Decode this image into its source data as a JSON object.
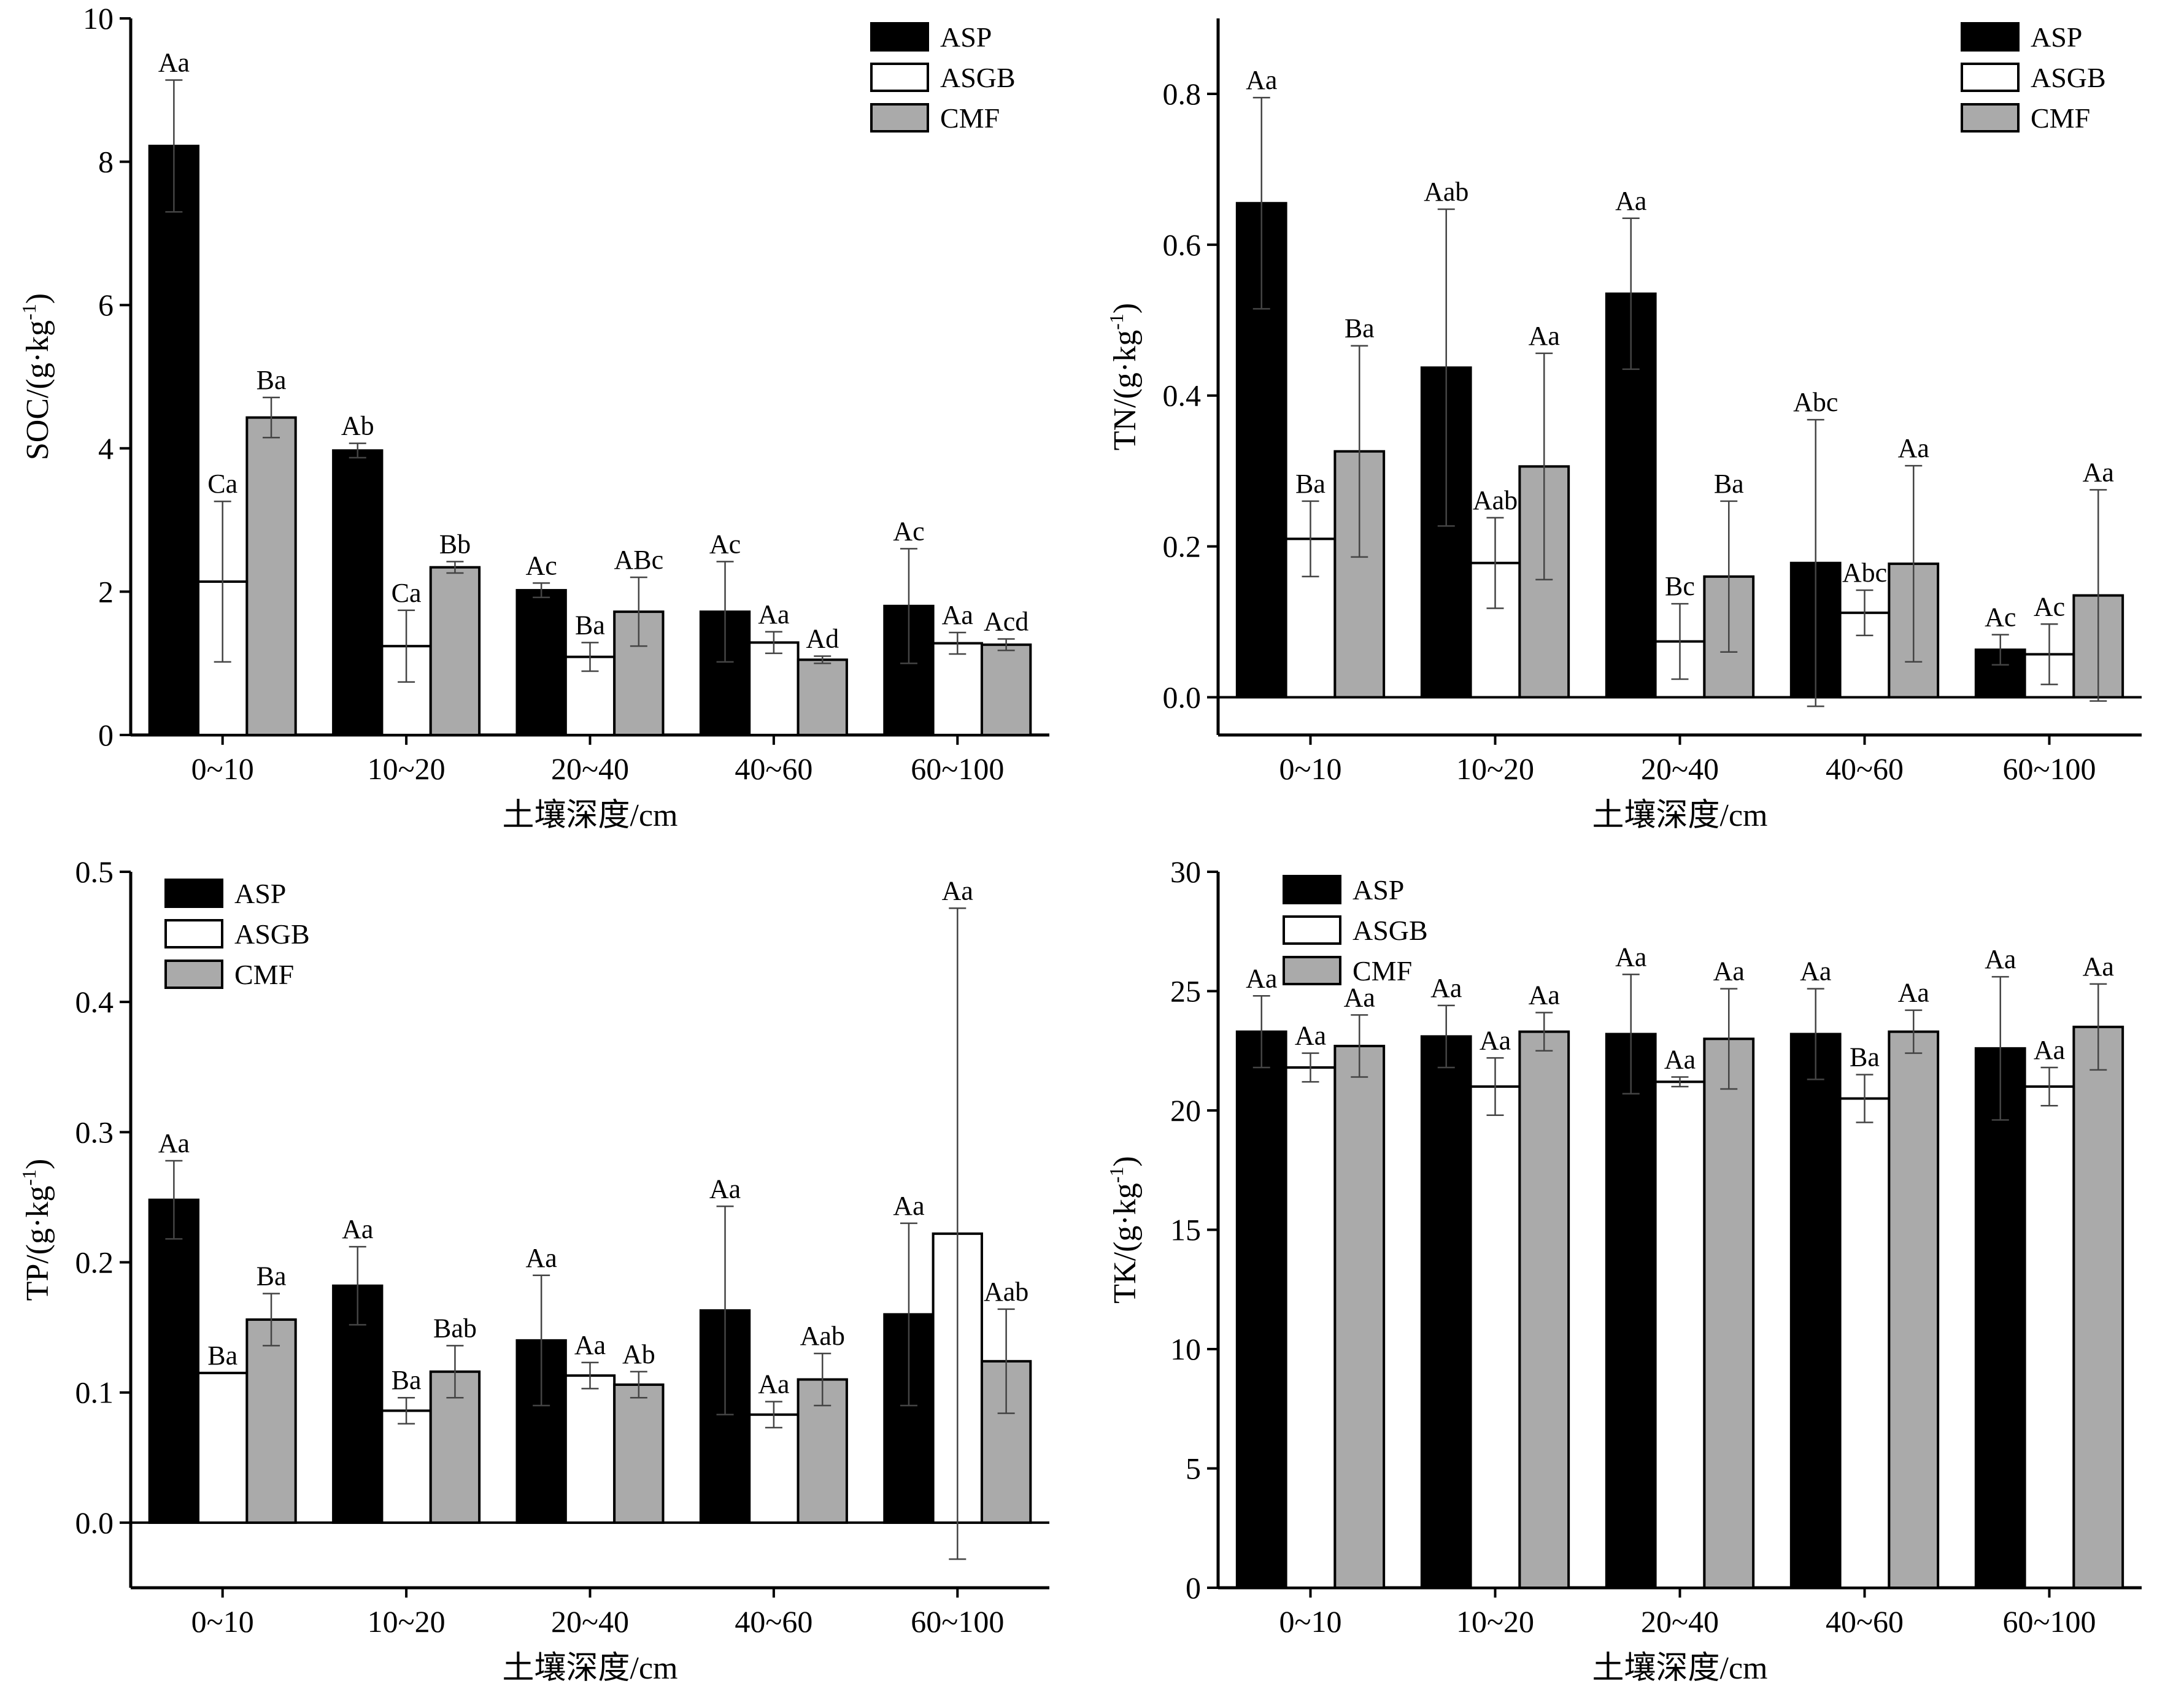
{
  "legend": [
    {
      "name": "ASP",
      "color": "#000000"
    },
    {
      "name": "ASGB",
      "color": "#ffffff"
    },
    {
      "name": "CMF",
      "color": "#aaaaaa"
    }
  ],
  "chart_data": [
    {
      "type": "bar",
      "categories": [
        "0~10",
        "10~20",
        "20~40",
        "40~60",
        "60~100"
      ],
      "xlabel": "土壤深度/cm",
      "ylabel": "SOC/(g·kg",
      "ylabel_sup": "-1",
      "ylabel_tail": ")",
      "ylim": [
        0,
        10
      ],
      "yticks": [
        0,
        2,
        4,
        6,
        8,
        10
      ],
      "ytick_labels": [
        "0",
        "2",
        "4",
        "6",
        "8",
        "10"
      ],
      "legend_position": "top-right",
      "series": [
        {
          "name": "ASP",
          "values": [
            8.22,
            3.97,
            2.02,
            1.72,
            1.8
          ],
          "err": [
            0.92,
            0.1,
            0.1,
            0.7,
            0.8
          ],
          "letters": [
            "Aa",
            "Ab",
            "Ac",
            "Ac",
            "Ac"
          ]
        },
        {
          "name": "ASGB",
          "values": [
            2.14,
            1.24,
            1.09,
            1.29,
            1.28
          ],
          "err": [
            1.12,
            0.5,
            0.2,
            0.15,
            0.15
          ],
          "letters": [
            "Ca",
            "Ca",
            "Ba",
            "Aa",
            "Aa"
          ]
        },
        {
          "name": "CMF",
          "values": [
            4.43,
            2.34,
            1.72,
            1.05,
            1.26
          ],
          "err": [
            0.28,
            0.08,
            0.48,
            0.05,
            0.08
          ],
          "letters": [
            "Ba",
            "Bb",
            "ABc",
            "Ad",
            "Acd"
          ]
        }
      ]
    },
    {
      "type": "bar",
      "categories": [
        "0~10",
        "10~20",
        "20~40",
        "40~60",
        "60~100"
      ],
      "xlabel": "土壤深度/cm",
      "ylabel": "TN/(g·kg",
      "ylabel_sup": "-1",
      "ylabel_tail": ")",
      "ylim": [
        -0.05,
        0.9
      ],
      "yticks": [
        0,
        0.2,
        0.4,
        0.6,
        0.8
      ],
      "ytick_labels": [
        "0.0",
        "0.2",
        "0.4",
        "0.6",
        "0.8"
      ],
      "legend_position": "top-right",
      "series": [
        {
          "name": "ASP",
          "values": [
            0.655,
            0.437,
            0.535,
            0.178,
            0.063
          ],
          "err": [
            0.14,
            0.21,
            0.1,
            0.19,
            0.02
          ],
          "letters": [
            "Aa",
            "Aab",
            "Aa",
            "Abc",
            "Ac"
          ]
        },
        {
          "name": "ASGB",
          "values": [
            0.21,
            0.178,
            0.074,
            0.112,
            0.057
          ],
          "err": [
            0.05,
            0.06,
            0.05,
            0.03,
            0.04
          ],
          "letters": [
            "Ba",
            "Aab",
            "Bc",
            "Abc",
            "Ac"
          ]
        },
        {
          "name": "CMF",
          "values": [
            0.326,
            0.306,
            0.16,
            0.177,
            0.135
          ],
          "err": [
            0.14,
            0.15,
            0.1,
            0.13,
            0.14
          ],
          "letters": [
            "Ba",
            "Aa",
            "Ba",
            "Aa",
            "Aa"
          ]
        }
      ]
    },
    {
      "type": "bar",
      "categories": [
        "0~10",
        "10~20",
        "20~40",
        "40~60",
        "60~100"
      ],
      "xlabel": "土壤深度/cm",
      "ylabel": "TP/(g·kg",
      "ylabel_sup": "-1",
      "ylabel_tail": ")",
      "ylim": [
        -0.05,
        0.5
      ],
      "yticks": [
        0,
        0.1,
        0.2,
        0.3,
        0.4,
        0.5
      ],
      "ytick_labels": [
        "0.0",
        "0.1",
        "0.2",
        "0.3",
        "0.4",
        "0.5"
      ],
      "legend_position": "top-left",
      "series": [
        {
          "name": "ASP",
          "values": [
            0.248,
            0.182,
            0.14,
            0.163,
            0.16
          ],
          "err": [
            0.03,
            0.03,
            0.05,
            0.08,
            0.07
          ],
          "letters": [
            "Aa",
            "Aa",
            "Aa",
            "Aa",
            "Aa"
          ]
        },
        {
          "name": "ASGB",
          "values": [
            0.115,
            0.086,
            0.113,
            0.083,
            0.222
          ],
          "err": [
            0.0,
            0.01,
            0.01,
            0.01,
            0.25
          ],
          "letters": [
            "Ba",
            "Ba",
            "Aa",
            "Aa",
            "Aa"
          ]
        },
        {
          "name": "CMF",
          "values": [
            0.156,
            0.116,
            0.106,
            0.11,
            0.124
          ],
          "err": [
            0.02,
            0.02,
            0.01,
            0.02,
            0.04
          ],
          "letters": [
            "Ba",
            "Bab",
            "Ab",
            "Aab",
            "Aab"
          ]
        }
      ]
    },
    {
      "type": "bar",
      "categories": [
        "0~10",
        "10~20",
        "20~40",
        "40~60",
        "60~100"
      ],
      "xlabel": "土壤深度/cm",
      "ylabel": "TK/(g·kg",
      "ylabel_sup": "-1",
      "ylabel_tail": ")",
      "ylim": [
        0,
        30
      ],
      "yticks": [
        0,
        5,
        10,
        15,
        20,
        25,
        30
      ],
      "ytick_labels": [
        "0",
        "5",
        "10",
        "15",
        "20",
        "25",
        "30"
      ],
      "legend_position": "top-left",
      "series": [
        {
          "name": "ASP",
          "values": [
            23.3,
            23.1,
            23.2,
            23.2,
            22.6
          ],
          "err": [
            1.5,
            1.3,
            2.5,
            1.9,
            3.0
          ],
          "letters": [
            "Aa",
            "Aa",
            "Aa",
            "Aa",
            "Aa"
          ]
        },
        {
          "name": "ASGB",
          "values": [
            21.8,
            21.0,
            21.2,
            20.5,
            21.0
          ],
          "err": [
            0.6,
            1.2,
            0.2,
            1.0,
            0.8
          ],
          "letters": [
            "Aa",
            "Aa",
            "Aa",
            "Ba",
            "Aa"
          ]
        },
        {
          "name": "CMF",
          "values": [
            22.7,
            23.3,
            23.0,
            23.3,
            23.5
          ],
          "err": [
            1.3,
            0.8,
            2.1,
            0.9,
            1.8
          ],
          "letters": [
            "Aa",
            "Aa",
            "Aa",
            "Aa",
            "Aa"
          ]
        }
      ]
    }
  ]
}
